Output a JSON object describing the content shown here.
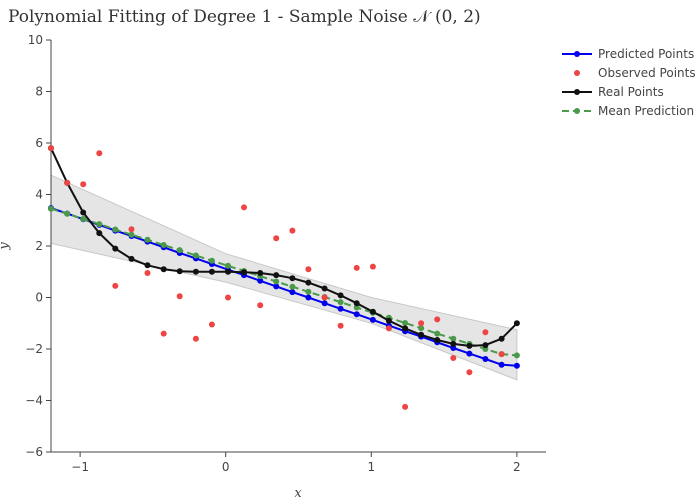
{
  "chart_data": {
    "type": "line",
    "title": "Polynomial Fitting of Degree 1 - Sample Noise 𝒩 (0, 2)",
    "xlabel": "x",
    "ylabel": "y",
    "xlim": [
      -1.2,
      2.2
    ],
    "ylim": [
      -6,
      10
    ],
    "x_ticks": [
      -1,
      0,
      1,
      2
    ],
    "x_tick_labels": [
      "−1",
      "0",
      "1",
      "2"
    ],
    "y_ticks": [
      -6,
      -4,
      -2,
      0,
      2,
      4,
      6,
      8,
      10
    ],
    "y_tick_labels": [
      "−6",
      "−4",
      "−2",
      "0",
      "2",
      "4",
      "6",
      "8",
      "10"
    ],
    "legend_position": "top-right",
    "grid": false,
    "band": {
      "x": [
        -1.2,
        0.0,
        1.0,
        2.0
      ],
      "upper": [
        4.75,
        1.7,
        0.0,
        -1.25
      ],
      "lower": [
        2.1,
        0.6,
        -1.0,
        -3.2
      ]
    },
    "series": [
      {
        "name": "Predicted Points",
        "kind": "line+markers",
        "color": "#0000ee",
        "x": [
          -1.2,
          -1.089,
          -0.979,
          -0.868,
          -0.758,
          -0.647,
          -0.537,
          -0.426,
          -0.316,
          -0.205,
          -0.095,
          0.016,
          0.126,
          0.237,
          0.347,
          0.458,
          0.568,
          0.679,
          0.789,
          0.9,
          1.011,
          1.121,
          1.232,
          1.342,
          1.453,
          1.563,
          1.674,
          1.784,
          1.895,
          2.0
        ],
        "y": [
          3.47,
          3.26,
          3.04,
          2.82,
          2.6,
          2.39,
          2.17,
          1.95,
          1.73,
          1.52,
          1.3,
          1.08,
          0.87,
          0.65,
          0.43,
          0.21,
          0.0,
          -0.22,
          -0.44,
          -0.65,
          -0.87,
          -1.09,
          -1.31,
          -1.52,
          -1.74,
          -1.96,
          -2.18,
          -2.39,
          -2.61,
          -2.65
        ]
      },
      {
        "name": "Observed Points",
        "kind": "markers",
        "color": "#ef4444",
        "x": [
          -1.2,
          -1.089,
          -0.979,
          -0.868,
          -0.758,
          -0.647,
          -0.537,
          -0.426,
          -0.316,
          -0.205,
          -0.095,
          0.016,
          0.126,
          0.237,
          0.347,
          0.458,
          0.568,
          0.679,
          0.789,
          0.9,
          1.011,
          1.121,
          1.232,
          1.342,
          1.453,
          1.563,
          1.674,
          1.784,
          1.895
        ],
        "y": [
          5.8,
          4.45,
          4.4,
          5.6,
          0.45,
          2.65,
          0.95,
          -1.4,
          0.05,
          -1.6,
          -1.05,
          0.0,
          3.5,
          -0.3,
          2.3,
          2.6,
          1.1,
          0.0,
          -1.1,
          1.15,
          1.2,
          -1.2,
          -4.25,
          -1.0,
          -0.85,
          -2.35,
          -2.9,
          -1.35,
          -2.2
        ]
      },
      {
        "name": "Real Points",
        "kind": "line+markers",
        "color": "#111111",
        "x": [
          -1.2,
          -1.089,
          -0.979,
          -0.868,
          -0.758,
          -0.647,
          -0.537,
          -0.426,
          -0.316,
          -0.205,
          -0.095,
          0.016,
          0.126,
          0.237,
          0.347,
          0.458,
          0.568,
          0.679,
          0.789,
          0.9,
          1.011,
          1.121,
          1.232,
          1.342,
          1.453,
          1.563,
          1.674,
          1.784,
          1.895,
          2.0
        ],
        "y": [
          5.8,
          4.45,
          3.3,
          2.5,
          1.9,
          1.5,
          1.25,
          1.1,
          1.02,
          1.0,
          1.0,
          1.0,
          0.98,
          0.95,
          0.87,
          0.75,
          0.58,
          0.35,
          0.08,
          -0.22,
          -0.55,
          -0.9,
          -1.2,
          -1.45,
          -1.65,
          -1.8,
          -1.88,
          -1.85,
          -1.6,
          -1.0
        ]
      },
      {
        "name": "Mean Prediction",
        "kind": "dashed+markers",
        "color": "#4a9a4a",
        "x": [
          -1.2,
          -1.089,
          -0.979,
          -0.868,
          -0.758,
          -0.647,
          -0.537,
          -0.426,
          -0.316,
          -0.205,
          -0.095,
          0.016,
          0.126,
          0.237,
          0.347,
          0.458,
          0.568,
          0.679,
          0.789,
          0.9,
          1.011,
          1.121,
          1.232,
          1.342,
          1.453,
          1.563,
          1.674,
          1.784,
          1.895,
          2.0
        ],
        "y": [
          3.45,
          3.25,
          3.05,
          2.85,
          2.64,
          2.44,
          2.24,
          2.04,
          1.84,
          1.63,
          1.43,
          1.23,
          1.03,
          0.83,
          0.62,
          0.42,
          0.22,
          0.02,
          -0.18,
          -0.39,
          -0.59,
          -0.79,
          -0.99,
          -1.19,
          -1.4,
          -1.6,
          -1.8,
          -2.0,
          -2.2,
          -2.25
        ]
      }
    ]
  }
}
